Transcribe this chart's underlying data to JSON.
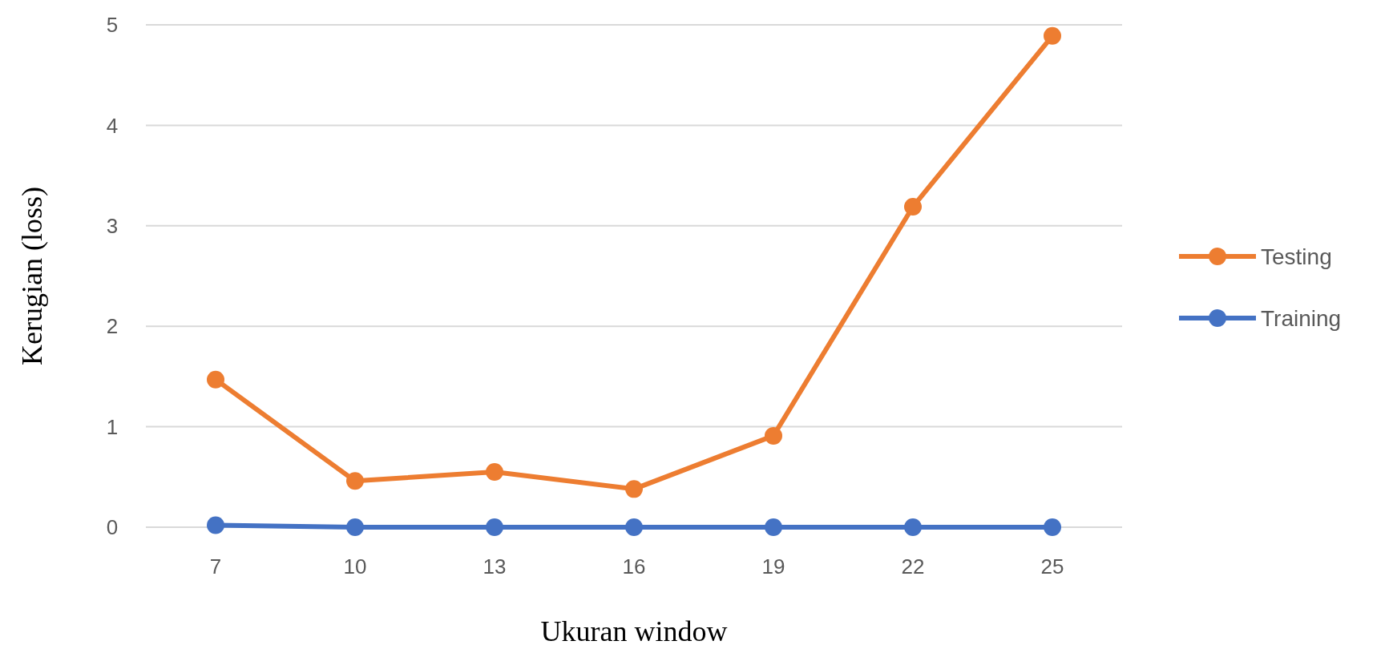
{
  "chart_data": {
    "type": "line",
    "xlabel": "Ukuran window",
    "ylabel": "Kerugian (loss)",
    "categories": [
      "7",
      "10",
      "13",
      "16",
      "19",
      "22",
      "25"
    ],
    "series": [
      {
        "name": "Testing",
        "color": "#ed7d31",
        "values": [
          1.47,
          0.46,
          0.55,
          0.38,
          0.91,
          3.19,
          4.89
        ]
      },
      {
        "name": "Training",
        "color": "#4472c4",
        "values": [
          0.02,
          0,
          0,
          0,
          0,
          0,
          0
        ]
      }
    ],
    "ylim": [
      0,
      5
    ],
    "yticks": [
      0,
      1,
      2,
      3,
      4,
      5
    ],
    "grid": "y",
    "legend": "right",
    "marker": "circle",
    "line_style": "solid"
  }
}
